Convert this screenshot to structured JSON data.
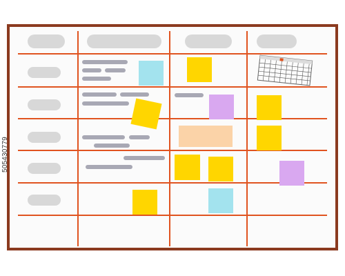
{
  "colors": {
    "frame": "#8b3a1f",
    "board": "#fbfbfb",
    "grid_line": "#e0531f",
    "header_pill": "#d8d8d8",
    "text_placeholder": "#a8a8b4"
  },
  "board": {
    "columns": 4,
    "rows": 6
  },
  "stickies": [
    {
      "id": "sticky-cyan-1",
      "color": "#a3e3ee"
    },
    {
      "id": "sticky-yellow-1",
      "color": "#ffd600"
    },
    {
      "id": "sticky-yellow-2",
      "color": "#ffd600"
    },
    {
      "id": "sticky-purple-1",
      "color": "#d9a8f0"
    },
    {
      "id": "sticky-yellow-3",
      "color": "#ffd600"
    },
    {
      "id": "sticky-peach-1",
      "color": "#fbd3a8"
    },
    {
      "id": "sticky-yellow-4",
      "color": "#ffd600"
    },
    {
      "id": "sticky-yellow-5",
      "color": "#ffd600"
    },
    {
      "id": "sticky-yellow-6",
      "color": "#ffd600"
    },
    {
      "id": "sticky-purple-2",
      "color": "#d9a8f0"
    },
    {
      "id": "sticky-yellow-7",
      "color": "#ffd600"
    },
    {
      "id": "sticky-cyan-2",
      "color": "#a3e3ee"
    }
  ],
  "calendar": {
    "grid_color": "#555",
    "marker_color": "#e0531f"
  },
  "watermark": "505430779"
}
